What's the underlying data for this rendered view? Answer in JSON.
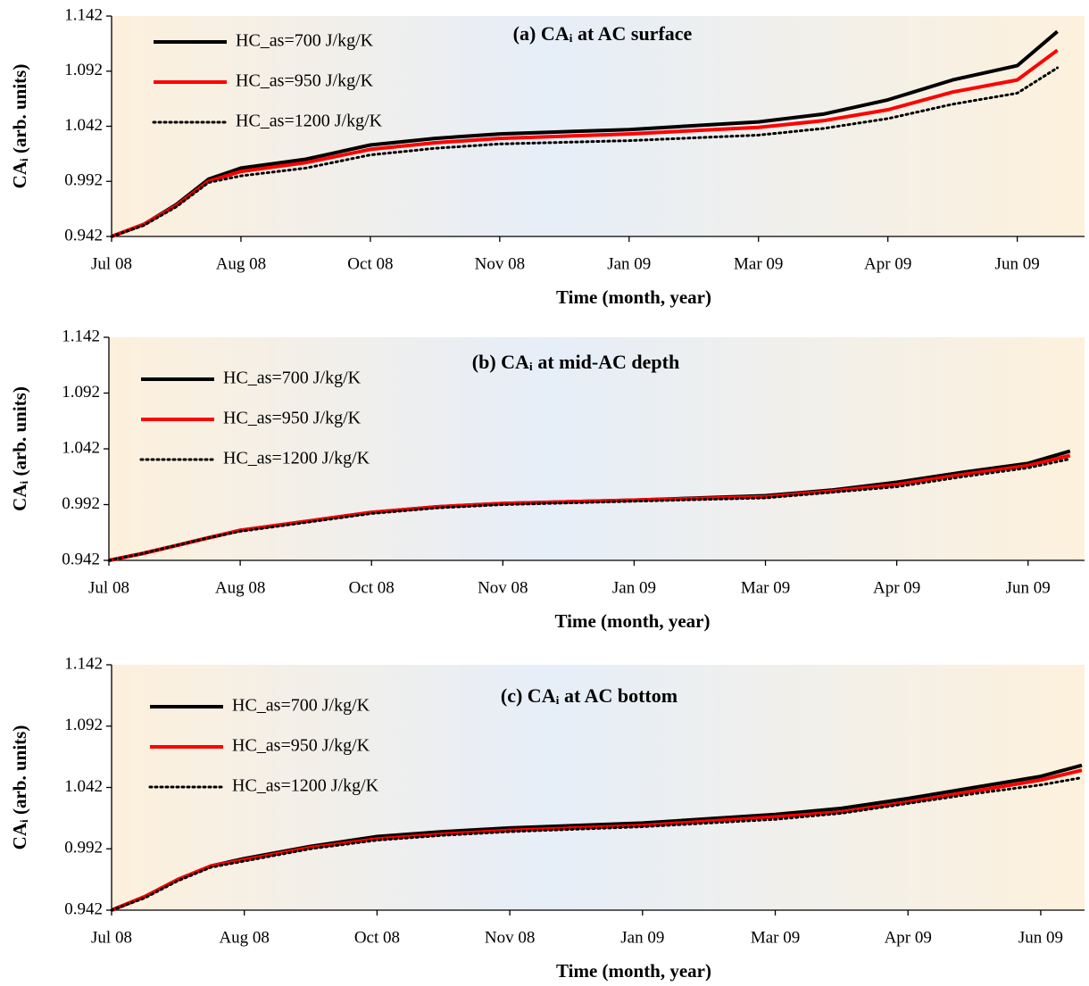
{
  "chart_data": [
    {
      "type": "line",
      "title": "(a) CAᵢ at AC surface",
      "x_label": "Time (month, year)",
      "y_label": "CAᵢ (arb. units)",
      "x": [
        0,
        0.25,
        0.5,
        0.75,
        1,
        1.5,
        2,
        2.5,
        3,
        4,
        5,
        5.5,
        6,
        6.5,
        7,
        7.31
      ],
      "series": [
        {
          "name": "HC_as=700 J/kg/K",
          "color": "#000000",
          "dash": "solid",
          "values": [
            0.942,
            0.953,
            0.971,
            0.994,
            1.004,
            1.012,
            1.025,
            1.031,
            1.035,
            1.039,
            1.046,
            1.053,
            1.066,
            1.084,
            1.097,
            1.128
          ]
        },
        {
          "name": "HC_as=950 J/kg/K",
          "color": "#ff0000",
          "dash": "solid",
          "values": [
            0.942,
            0.953,
            0.97,
            0.992,
            1.001,
            1.009,
            1.021,
            1.027,
            1.031,
            1.035,
            1.041,
            1.047,
            1.057,
            1.073,
            1.084,
            1.111
          ]
        },
        {
          "name": "HC_as=1200 J/kg/K",
          "color": "#000000",
          "dash": "dotted",
          "values": [
            0.942,
            0.952,
            0.969,
            0.991,
            0.997,
            1.004,
            1.016,
            1.022,
            1.026,
            1.029,
            1.034,
            1.04,
            1.049,
            1.062,
            1.072,
            1.095
          ]
        }
      ],
      "xlim": [
        0,
        7.52
      ],
      "xticks": [
        {
          "value": 0,
          "label": "Jul 08"
        },
        {
          "value": 1,
          "label": "Aug 08"
        },
        {
          "value": 2,
          "label": "Oct 08"
        },
        {
          "value": 3,
          "label": "Nov 08"
        },
        {
          "value": 4,
          "label": "Jan 09"
        },
        {
          "value": 5,
          "label": "Mar 09"
        },
        {
          "value": 6,
          "label": "Apr 09"
        },
        {
          "value": 7,
          "label": "Jun 09"
        }
      ],
      "ylim": [
        0.942,
        1.142
      ],
      "yticks": [
        0.942,
        0.992,
        1.042,
        1.092,
        1.142
      ]
    },
    {
      "type": "line",
      "title": "(b) CAᵢ at mid-AC depth",
      "x_label": "Time (month, year)",
      "y_label": "CAᵢ (arb. units)",
      "x": [
        0,
        0.25,
        0.5,
        0.75,
        1,
        1.5,
        2,
        2.5,
        3,
        4,
        5,
        5.5,
        6,
        6.5,
        7,
        7.32
      ],
      "series": [
        {
          "name": "HC_as=700 J/kg/K",
          "color": "#000000",
          "dash": "solid",
          "values": [
            0.942,
            0.948,
            0.955,
            0.962,
            0.969,
            0.977,
            0.985,
            0.99,
            0.993,
            0.996,
            1.0,
            1.005,
            1.012,
            1.021,
            1.029,
            1.04
          ]
        },
        {
          "name": "HC_as=950 J/kg/K",
          "color": "#ff0000",
          "dash": "solid",
          "values": [
            0.942,
            0.948,
            0.955,
            0.962,
            0.969,
            0.977,
            0.985,
            0.99,
            0.993,
            0.996,
            0.999,
            1.004,
            1.01,
            1.019,
            1.027,
            1.036
          ]
        },
        {
          "name": "HC_as=1200 J/kg/K",
          "color": "#000000",
          "dash": "dotted",
          "values": [
            0.942,
            0.948,
            0.955,
            0.962,
            0.968,
            0.976,
            0.984,
            0.989,
            0.992,
            0.995,
            0.998,
            1.003,
            1.008,
            1.017,
            1.025,
            1.033
          ]
        }
      ],
      "xlim": [
        0,
        7.43
      ],
      "xticks": [
        {
          "value": 0,
          "label": "Jul 08"
        },
        {
          "value": 1,
          "label": "Aug 08"
        },
        {
          "value": 2,
          "label": "Oct 08"
        },
        {
          "value": 3,
          "label": "Nov 08"
        },
        {
          "value": 4,
          "label": "Jan 09"
        },
        {
          "value": 5,
          "label": "Mar 09"
        },
        {
          "value": 6,
          "label": "Apr 09"
        },
        {
          "value": 7,
          "label": "Jun 09"
        }
      ],
      "ylim": [
        0.942,
        1.142
      ],
      "yticks": [
        0.942,
        0.992,
        1.042,
        1.092,
        1.142
      ]
    },
    {
      "type": "line",
      "title": "(c) CAᵢ at AC bottom",
      "x_label": "Time (month, year)",
      "y_label": "CAᵢ (arb. units)",
      "x": [
        0,
        0.25,
        0.5,
        0.75,
        1,
        1.5,
        2,
        2.5,
        3,
        4,
        5,
        5.5,
        6,
        6.5,
        7,
        7.31
      ],
      "series": [
        {
          "name": "HC_as=700 J/kg/K",
          "color": "#000000",
          "dash": "solid",
          "values": [
            0.942,
            0.953,
            0.967,
            0.978,
            0.984,
            0.994,
            1.002,
            1.006,
            1.009,
            1.013,
            1.02,
            1.025,
            1.033,
            1.042,
            1.051,
            1.06
          ]
        },
        {
          "name": "HC_as=950 J/kg/K",
          "color": "#ff0000",
          "dash": "solid",
          "values": [
            0.942,
            0.953,
            0.967,
            0.978,
            0.983,
            0.993,
            1.0,
            1.004,
            1.007,
            1.011,
            1.018,
            1.022,
            1.03,
            1.039,
            1.048,
            1.056
          ]
        },
        {
          "name": "HC_as=1200 J/kg/K",
          "color": "#000000",
          "dash": "dotted",
          "values": [
            0.942,
            0.952,
            0.966,
            0.977,
            0.982,
            0.992,
            0.999,
            1.003,
            1.006,
            1.01,
            1.016,
            1.021,
            1.029,
            1.037,
            1.044,
            1.05
          ]
        }
      ],
      "xlim": [
        0,
        7.33
      ],
      "xticks": [
        {
          "value": 0,
          "label": "Jul 08"
        },
        {
          "value": 1,
          "label": "Aug 08"
        },
        {
          "value": 2,
          "label": "Oct 08"
        },
        {
          "value": 3,
          "label": "Nov 08"
        },
        {
          "value": 4,
          "label": "Jan 09"
        },
        {
          "value": 5,
          "label": "Mar 09"
        },
        {
          "value": 6,
          "label": "Apr 09"
        },
        {
          "value": 7,
          "label": "Jun 09"
        }
      ],
      "ylim": [
        0.942,
        1.142
      ],
      "yticks": [
        0.942,
        0.992,
        1.042,
        1.092,
        1.142
      ]
    }
  ]
}
